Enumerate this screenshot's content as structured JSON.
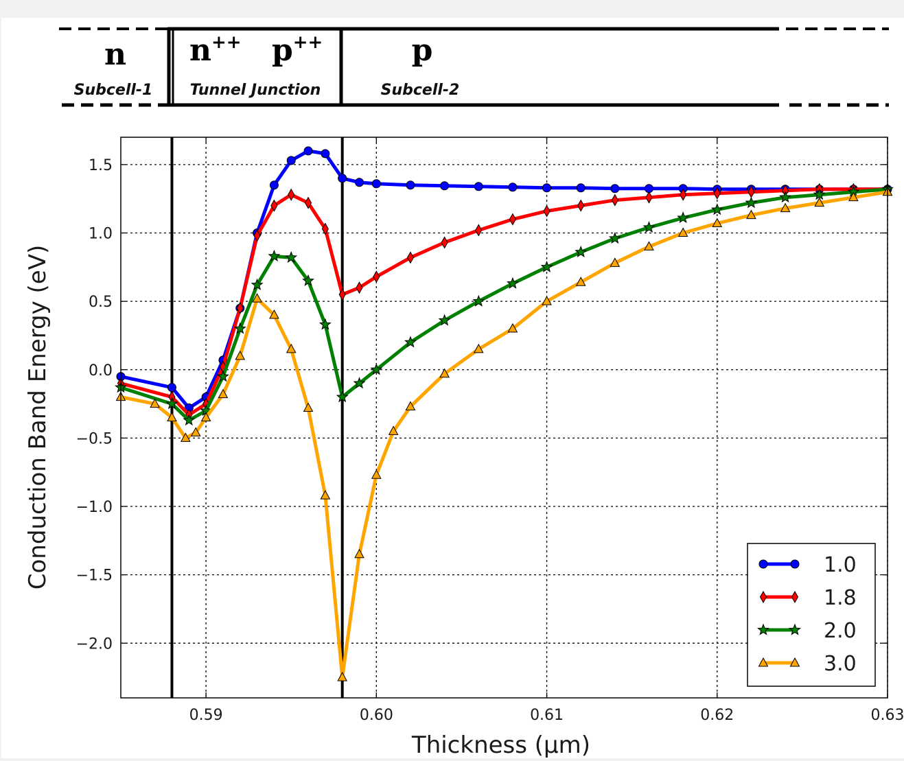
{
  "regions": [
    {
      "type_label": "n",
      "sup": "",
      "name": "Subcell-1"
    },
    {
      "type_label": "n",
      "sup": "++",
      "type_label2": "p",
      "sup2": "++",
      "name": "Tunnel Junction"
    },
    {
      "type_label": "p",
      "sup": "",
      "name": "Subcell-2"
    }
  ],
  "chart_data": {
    "type": "line",
    "title": "",
    "xlabel": "Thickness (μm)",
    "ylabel": "Conduction Band Energy (eV)",
    "xlim": [
      0.585,
      0.63
    ],
    "ylim": [
      -2.4,
      1.7
    ],
    "xticks": [
      0.59,
      0.6,
      0.61,
      0.62,
      0.63
    ],
    "xtick_labels": [
      "0.59",
      "0.60",
      "0.61",
      "0.62",
      "0.63"
    ],
    "yticks": [
      1.5,
      1.0,
      0.5,
      0.0,
      -0.5,
      -1.0,
      -1.5,
      -2.0
    ],
    "ytick_labels": [
      "1.5",
      "1.0",
      "0.5",
      "0.0",
      "−0.5",
      "−1.0",
      "−1.5",
      "−2.0"
    ],
    "grid": true,
    "legend_position": "lower-right",
    "vlines": [
      0.588,
      0.598
    ],
    "series": [
      {
        "name": "1.0",
        "color": "#0000ff",
        "marker": "circle",
        "x": [
          0.585,
          0.588,
          0.589,
          0.59,
          0.591,
          0.592,
          0.593,
          0.594,
          0.595,
          0.596,
          0.597,
          0.598,
          0.599,
          0.6,
          0.602,
          0.604,
          0.606,
          0.608,
          0.61,
          0.612,
          0.614,
          0.616,
          0.618,
          0.62,
          0.622,
          0.624,
          0.626,
          0.628,
          0.63
        ],
        "y": [
          -0.05,
          -0.13,
          -0.28,
          -0.2,
          0.07,
          0.45,
          1.0,
          1.35,
          1.53,
          1.6,
          1.58,
          1.4,
          1.37,
          1.36,
          1.35,
          1.345,
          1.34,
          1.335,
          1.33,
          1.33,
          1.325,
          1.325,
          1.325,
          1.32,
          1.32,
          1.32,
          1.32,
          1.32,
          1.32
        ]
      },
      {
        "name": "1.8",
        "color": "#ff0000",
        "marker": "diamond",
        "x": [
          0.585,
          0.588,
          0.589,
          0.59,
          0.591,
          0.592,
          0.593,
          0.594,
          0.595,
          0.596,
          0.597,
          0.598,
          0.599,
          0.6,
          0.602,
          0.604,
          0.606,
          0.608,
          0.61,
          0.612,
          0.614,
          0.616,
          0.618,
          0.62,
          0.622,
          0.624,
          0.626,
          0.628,
          0.63
        ],
        "y": [
          -0.1,
          -0.2,
          -0.33,
          -0.25,
          0.02,
          0.45,
          0.98,
          1.2,
          1.28,
          1.22,
          1.03,
          0.55,
          0.6,
          0.68,
          0.82,
          0.93,
          1.02,
          1.1,
          1.16,
          1.2,
          1.24,
          1.26,
          1.28,
          1.29,
          1.3,
          1.31,
          1.32,
          1.32,
          1.32
        ]
      },
      {
        "name": "2.0",
        "color": "#008000",
        "marker": "star",
        "x": [
          0.585,
          0.588,
          0.589,
          0.59,
          0.591,
          0.592,
          0.593,
          0.594,
          0.595,
          0.596,
          0.597,
          0.598,
          0.599,
          0.6,
          0.602,
          0.604,
          0.606,
          0.608,
          0.61,
          0.612,
          0.614,
          0.616,
          0.618,
          0.62,
          0.622,
          0.624,
          0.626,
          0.628,
          0.63
        ],
        "y": [
          -0.13,
          -0.25,
          -0.37,
          -0.3,
          -0.05,
          0.3,
          0.62,
          0.83,
          0.82,
          0.65,
          0.33,
          -0.2,
          -0.1,
          0.0,
          0.2,
          0.36,
          0.5,
          0.63,
          0.75,
          0.86,
          0.96,
          1.04,
          1.11,
          1.17,
          1.22,
          1.26,
          1.28,
          1.3,
          1.32
        ]
      },
      {
        "name": "3.0",
        "color": "#ffa500",
        "marker": "triangle",
        "x": [
          0.585,
          0.587,
          0.588,
          0.5888,
          0.5894,
          0.59,
          0.591,
          0.592,
          0.593,
          0.594,
          0.595,
          0.596,
          0.597,
          0.598,
          0.599,
          0.6,
          0.601,
          0.602,
          0.604,
          0.606,
          0.608,
          0.61,
          0.612,
          0.614,
          0.616,
          0.618,
          0.62,
          0.622,
          0.624,
          0.626,
          0.628,
          0.63
        ],
        "y": [
          -0.2,
          -0.25,
          -0.35,
          -0.5,
          -0.46,
          -0.35,
          -0.18,
          0.1,
          0.52,
          0.4,
          0.15,
          -0.28,
          -0.92,
          -2.25,
          -1.35,
          -0.77,
          -0.45,
          -0.27,
          -0.03,
          0.15,
          0.3,
          0.5,
          0.64,
          0.78,
          0.9,
          1.0,
          1.07,
          1.13,
          1.18,
          1.22,
          1.26,
          1.3
        ]
      }
    ]
  }
}
